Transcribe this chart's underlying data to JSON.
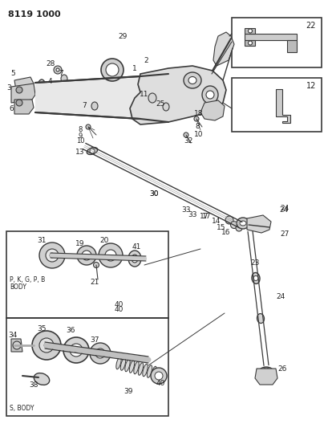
{
  "title": "8119 1000",
  "bg_color": "#ffffff",
  "lc": "#3a3a3a",
  "tc": "#222222",
  "fig_width": 4.1,
  "fig_height": 5.33,
  "dpi": 100,
  "labels": {
    "title": "8119 1000",
    "box1_text1": "P, K, G, P, B",
    "box1_text2": "BODY",
    "box2_text": "S, BODY",
    "n22": "22",
    "n12": "12",
    "n28": "28",
    "n29": "29",
    "n5": "5",
    "n3": "3",
    "n6": "6",
    "n4": "4",
    "n7a": "7",
    "n7b": "7",
    "n1": "1",
    "n2": "2",
    "n11": "11",
    "n25": "25",
    "n18": "18",
    "n8a": "8",
    "n9": "9",
    "n10a": "10",
    "n8b": "8",
    "n10b": "10",
    "n32": "32",
    "n13": "13",
    "n30": "30",
    "n33": "33",
    "n17": "17",
    "n14": "14",
    "n15": "15",
    "n16": "16",
    "n24a": "24",
    "n27": "27",
    "n23": "23",
    "n24b": "24",
    "n26": "26",
    "n31": "31",
    "n19": "19",
    "n20": "20",
    "n41": "41",
    "n21": "21",
    "n40a": "40",
    "n35": "35",
    "n36": "36",
    "n37": "37",
    "n34": "34",
    "n38": "38",
    "n39": "39",
    "n40b": "40"
  }
}
